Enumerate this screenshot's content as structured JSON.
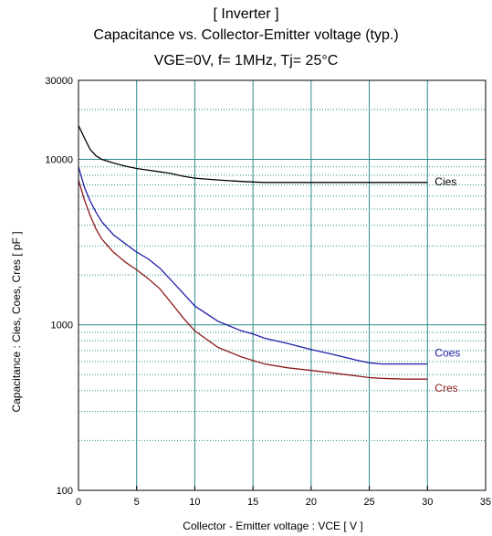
{
  "chart_data": {
    "type": "line",
    "title": "[ Inverter ]",
    "subtitle": "Capacitance  vs.  Collector-Emitter voltage  (typ.)",
    "conditions": "VGE=0V,  f= 1MHz,  Tj= 25°C",
    "xlabel": "Collector - Emitter voltage : VCE  [ V ]",
    "ylabel": "Capacitance : Cies, Coes, Cres  [ pF ]",
    "xlim": [
      0,
      35
    ],
    "ylim": [
      100,
      30000
    ],
    "yscale": "log",
    "grid": true,
    "x_ticks": [
      "0",
      "5",
      "10",
      "15",
      "20",
      "25",
      "30",
      "35"
    ],
    "y_ticks": [
      "100",
      "1000",
      "10000",
      "30000"
    ],
    "series": [
      {
        "name": "Cies",
        "color": "#000000",
        "x": [
          0,
          0.5,
          1,
          1.5,
          2,
          3,
          4,
          5,
          6,
          7,
          8,
          9,
          10,
          12,
          14,
          15,
          16,
          18,
          20,
          22,
          24,
          25,
          26,
          28,
          30
        ],
        "values": [
          16000,
          13500,
          11500,
          10500,
          10000,
          9500,
          9100,
          8800,
          8600,
          8400,
          8200,
          7900,
          7700,
          7500,
          7350,
          7300,
          7250,
          7250,
          7250,
          7250,
          7250,
          7250,
          7250,
          7250,
          7250
        ]
      },
      {
        "name": "Coes",
        "color": "#1f1fa8",
        "x": [
          0,
          0.5,
          1,
          1.5,
          2,
          3,
          4,
          5,
          6,
          7,
          8,
          9,
          10,
          12,
          14,
          15,
          16,
          18,
          20,
          22,
          24,
          25,
          26,
          28,
          30
        ],
        "values": [
          9000,
          6800,
          5600,
          4800,
          4200,
          3500,
          3100,
          2750,
          2500,
          2200,
          1850,
          1550,
          1300,
          1050,
          920,
          880,
          830,
          770,
          710,
          660,
          610,
          590,
          580,
          580,
          580
        ]
      },
      {
        "name": "Cres",
        "color": "#8b1a1a",
        "x": [
          0,
          0.5,
          1,
          1.5,
          2,
          3,
          4,
          5,
          6,
          7,
          8,
          9,
          10,
          12,
          14,
          15,
          16,
          18,
          20,
          22,
          24,
          25,
          26,
          28,
          30
        ],
        "values": [
          7500,
          5700,
          4600,
          3800,
          3300,
          2750,
          2400,
          2150,
          1900,
          1650,
          1350,
          1100,
          920,
          730,
          640,
          610,
          580,
          550,
          530,
          510,
          490,
          480,
          475,
          470,
          470
        ]
      }
    ]
  }
}
